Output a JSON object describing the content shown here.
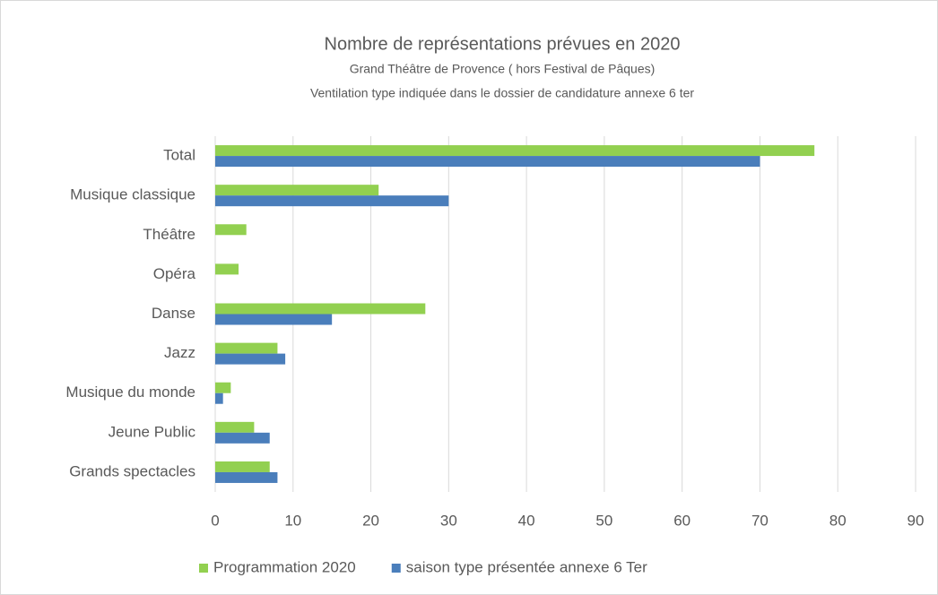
{
  "chart_data": {
    "type": "bar",
    "orientation": "horizontal",
    "title": "Nombre de représentations prévues en 2020",
    "subtitle": [
      "Grand Théâtre de Provence ( hors Festival de Pâques)",
      "Ventilation type indiquée dans le dossier de candidature annexe 6 ter"
    ],
    "categories": [
      "Total",
      "Musique classique",
      "Théâtre",
      "Opéra",
      "Danse",
      "Jazz",
      "Musique du monde",
      "Jeune Public",
      "Grands spectacles"
    ],
    "series": [
      {
        "name": "Programmation 2020",
        "color": "#92d050",
        "values": [
          77,
          21,
          4,
          3,
          27,
          8,
          2,
          5,
          7
        ]
      },
      {
        "name": "saison type présentée annexe 6 Ter",
        "color": "#4a7ebb",
        "values": [
          70,
          30,
          0,
          0,
          15,
          9,
          1,
          7,
          8
        ]
      }
    ],
    "xlim": [
      0,
      90
    ],
    "xticks": [
      0,
      10,
      20,
      30,
      40,
      50,
      60,
      70,
      80,
      90
    ],
    "grid": true,
    "legend": "bottom"
  }
}
